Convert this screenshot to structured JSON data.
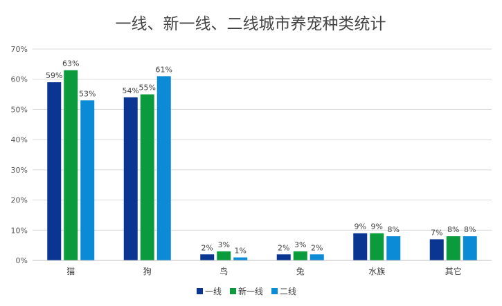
{
  "chart_data": {
    "type": "bar",
    "title": "一线、新一线、二线城市养宠种类统计",
    "xlabel": "",
    "ylabel": "",
    "categories": [
      "猫",
      "狗",
      "鸟",
      "兔",
      "水族",
      "其它"
    ],
    "series": [
      {
        "name": "一线",
        "color": "#0a3591",
        "values": [
          59,
          54,
          2,
          2,
          9,
          7
        ],
        "labels": [
          "59%",
          "54%",
          "2%",
          "2%",
          "9%",
          "7%"
        ]
      },
      {
        "name": "新一线",
        "color": "#0b9b3d",
        "values": [
          63,
          55,
          3,
          3,
          9,
          8
        ],
        "labels": [
          "63%",
          "55%",
          "3%",
          "3%",
          "9%",
          "8%"
        ]
      },
      {
        "name": "二线",
        "color": "#0b8ad6",
        "values": [
          53,
          61,
          1,
          2,
          8,
          8
        ],
        "labels": [
          "53%",
          "61%",
          "1%",
          "2%",
          "8%",
          "8%"
        ]
      }
    ],
    "ylim": [
      0,
      70
    ],
    "yticks": [
      0,
      10,
      20,
      30,
      40,
      50,
      60,
      70
    ],
    "ytick_labels": [
      "0%",
      "10%",
      "20%",
      "30%",
      "40%",
      "50%",
      "60%",
      "70%"
    ],
    "grid": true,
    "legend_position": "bottom"
  }
}
